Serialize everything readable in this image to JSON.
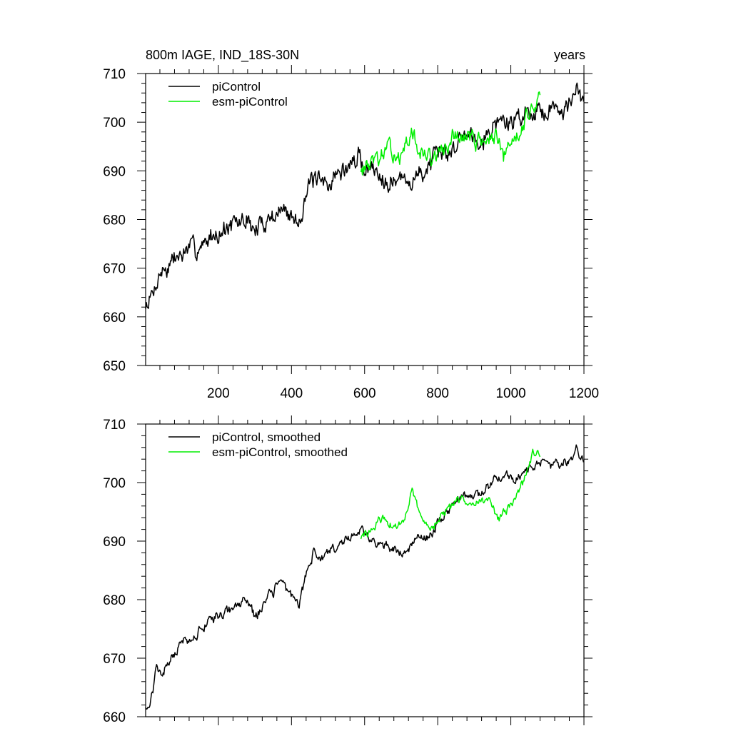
{
  "chart_data": [
    {
      "type": "line",
      "title": "800m IAGE, IND_18S-30N",
      "right_title": "years",
      "xlim": [
        1,
        1200
      ],
      "ylim": [
        650,
        710
      ],
      "x_major_ticks": [
        200,
        400,
        600,
        800,
        1000,
        1200
      ],
      "x_tick_labels": [
        "200",
        "400",
        "600",
        "800",
        "1000",
        "1200"
      ],
      "y_major_ticks": [
        650,
        660,
        670,
        680,
        690,
        700,
        710
      ],
      "y_tick_labels": [
        "650",
        "660",
        "670",
        "680",
        "690",
        "700",
        "710"
      ],
      "legend_position": "top-left",
      "grid": false,
      "series": [
        {
          "name": "piControl",
          "color": "#000000",
          "x_range": [
            1,
            1200
          ],
          "anchors": [
            [
              1,
              662
            ],
            [
              20,
              664
            ],
            [
              40,
              669
            ],
            [
              60,
              670
            ],
            [
              100,
              673
            ],
            [
              140,
              674
            ],
            [
              180,
              677
            ],
            [
              200,
              677
            ],
            [
              240,
              678.5
            ],
            [
              280,
              680
            ],
            [
              300,
              678
            ],
            [
              340,
              680.5
            ],
            [
              370,
              682
            ],
            [
              400,
              681
            ],
            [
              420,
              680
            ],
            [
              440,
              686
            ],
            [
              460,
              688
            ],
            [
              480,
              687
            ],
            [
              500,
              688
            ],
            [
              520,
              689
            ],
            [
              560,
              691
            ],
            [
              580,
              693
            ],
            [
              600,
              691
            ],
            [
              640,
              690
            ],
            [
              680,
              688
            ],
            [
              720,
              688
            ],
            [
              760,
              690
            ],
            [
              800,
              692
            ],
            [
              840,
              695
            ],
            [
              880,
              698
            ],
            [
              920,
              697
            ],
            [
              960,
              700
            ],
            [
              1000,
              700
            ],
            [
              1040,
              702
            ],
            [
              1080,
              703
            ],
            [
              1120,
              703
            ],
            [
              1160,
              704
            ],
            [
              1180,
              706
            ],
            [
              1200,
              703
            ]
          ],
          "noise": 2.2,
          "seed": 7
        },
        {
          "name": "esm-piControl",
          "color": "#00ee00",
          "x_range": [
            590,
            1080
          ],
          "anchors": [
            [
              590,
              690.5
            ],
            [
              620,
              692
            ],
            [
              660,
              694
            ],
            [
              700,
              693
            ],
            [
              730,
              698
            ],
            [
              760,
              693
            ],
            [
              800,
              692.5
            ],
            [
              840,
              697
            ],
            [
              880,
              697.5
            ],
            [
              920,
              696
            ],
            [
              960,
              697
            ],
            [
              980,
              693
            ],
            [
              1000,
              696
            ],
            [
              1040,
              701
            ],
            [
              1080,
              706
            ]
          ],
          "noise": 1.9,
          "seed": 13
        }
      ]
    },
    {
      "type": "line",
      "xlim": [
        1,
        1200
      ],
      "ylim": [
        660,
        710
      ],
      "x_major_ticks": [
        200,
        400,
        600,
        800,
        1000,
        1200
      ],
      "y_major_ticks": [
        660,
        670,
        680,
        690,
        700,
        710
      ],
      "y_tick_labels": [
        "660",
        "670",
        "680",
        "690",
        "700",
        "710"
      ],
      "legend_position": "top-left",
      "grid": false,
      "series": [
        {
          "name": "piControl, smoothed",
          "color": "#000000",
          "x_range": [
            1,
            1200
          ],
          "anchors": [
            [
              1,
              662
            ],
            [
              10,
              662
            ],
            [
              20,
              664
            ],
            [
              30,
              669
            ],
            [
              45,
              667
            ],
            [
              60,
              669
            ],
            [
              80,
              671
            ],
            [
              100,
              673
            ],
            [
              140,
              674
            ],
            [
              180,
              677
            ],
            [
              200,
              677.5
            ],
            [
              240,
              678.5
            ],
            [
              280,
              680
            ],
            [
              300,
              677
            ],
            [
              340,
              680.5
            ],
            [
              370,
              683
            ],
            [
              400,
              681
            ],
            [
              420,
              679
            ],
            [
              440,
              685
            ],
            [
              460,
              688
            ],
            [
              480,
              687
            ],
            [
              500,
              688.5
            ],
            [
              520,
              689
            ],
            [
              560,
              691
            ],
            [
              580,
              692
            ],
            [
              600,
              691
            ],
            [
              640,
              689.5
            ],
            [
              680,
              688
            ],
            [
              710,
              688
            ],
            [
              740,
              690
            ],
            [
              780,
              691
            ],
            [
              800,
              693
            ],
            [
              840,
              696
            ],
            [
              880,
              698
            ],
            [
              920,
              698
            ],
            [
              960,
              701
            ],
            [
              1000,
              701
            ],
            [
              1040,
              702
            ],
            [
              1080,
              703
            ],
            [
              1120,
              703
            ],
            [
              1160,
              703.5
            ],
            [
              1180,
              706
            ],
            [
              1200,
              703
            ]
          ],
          "noise": 0.9,
          "seed": 21
        },
        {
          "name": "esm-piControl, smoothed",
          "color": "#00ee00",
          "x_range": [
            590,
            1080
          ],
          "anchors": [
            [
              590,
              690.5
            ],
            [
              620,
              692
            ],
            [
              650,
              694
            ],
            [
              680,
              692
            ],
            [
              700,
              693
            ],
            [
              730,
              698
            ],
            [
              760,
              693
            ],
            [
              790,
              692.5
            ],
            [
              820,
              695
            ],
            [
              860,
              697
            ],
            [
              900,
              697
            ],
            [
              940,
              697
            ],
            [
              970,
              694
            ],
            [
              1000,
              696
            ],
            [
              1040,
              701
            ],
            [
              1060,
              705
            ],
            [
              1080,
              705
            ]
          ],
          "noise": 0.8,
          "seed": 29
        }
      ]
    }
  ]
}
